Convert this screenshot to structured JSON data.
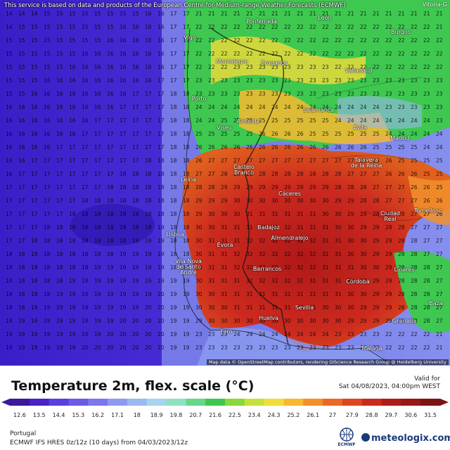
{
  "disclaimer": "This service is based on data and products of the European Centre for Medium-range Weather Forecasts (ECMWF)",
  "corner_city": "Vitoria-G",
  "attribution": "Map data © OpenStreetMap contributors, rendering GIScience Research Group @ Heidelberg University",
  "title": "Temperature 2m, flex. scale (°C)",
  "valid_label": "Valid for",
  "valid_time": "Sat 04/08/2023, 04:00pm WEST",
  "region": "Portugal",
  "model_line": "ECMWF IFS HRES 0z/12z (10 days) from 04/03/2023/12z",
  "ecmwf_logo_text": "ECMWF",
  "brand": "meteologix.com",
  "colors": {
    "cold": "#3a1fc8",
    "cool": "#8a8ae8",
    "mild": "#44bb44",
    "warm": "#ffaa00",
    "hot": "#cc2200",
    "veryhot": "#b01818"
  },
  "legend": {
    "ticks": [
      "12.6",
      "13.5",
      "14.4",
      "15.3",
      "16.2",
      "17.1",
      "18",
      "18.9",
      "19.8",
      "20.7",
      "21.6",
      "22.5",
      "23.4",
      "24.3",
      "25.2",
      "26.1",
      "27",
      "27.9",
      "28.8",
      "29.7",
      "30.6",
      "31.5"
    ],
    "colors": [
      "#3a1a9a",
      "#4a22c8",
      "#5a3ee0",
      "#6c5ae8",
      "#7c78ec",
      "#8e9af0",
      "#9ab8f2",
      "#a6d4ee",
      "#8ee0c0",
      "#66d88a",
      "#3ec850",
      "#8ad83a",
      "#c6e23a",
      "#f2dc3a",
      "#f8b830",
      "#f2902a",
      "#ea6a24",
      "#de4620",
      "#cc2a1e",
      "#b01c1c",
      "#961818",
      "#7c1414"
    ]
  },
  "cities": [
    {
      "name": "León"
    },
    {
      "name": "Ponferrada"
    },
    {
      "name": "Burgos"
    },
    {
      "name": "Vigo"
    },
    {
      "name": "Montalegre"
    },
    {
      "name": "Bragança"
    },
    {
      "name": "Valladolid"
    },
    {
      "name": "Porto"
    },
    {
      "name": "Salamanca"
    },
    {
      "name": "Viseu"
    },
    {
      "name": "Almeida"
    },
    {
      "name": "Ávila"
    },
    {
      "name": "Madrid"
    },
    {
      "name": "Castelo\nBranco"
    },
    {
      "name": "Talavera\nde la Reina"
    },
    {
      "name": "Leiria"
    },
    {
      "name": "Cáceres"
    },
    {
      "name": "Tomelloso"
    },
    {
      "name": "Ciudad\nReal"
    },
    {
      "name": "Badajoz"
    },
    {
      "name": "Lisboa"
    },
    {
      "name": "Évora"
    },
    {
      "name": "Almendralejo"
    },
    {
      "name": "Vila Nova\nde Santo\nAndré"
    },
    {
      "name": "Barrancos"
    },
    {
      "name": "Linares"
    },
    {
      "name": "Córdoba"
    },
    {
      "name": "Sevilla"
    },
    {
      "name": "Huelva"
    },
    {
      "name": "Granada"
    },
    {
      "name": "Faro"
    },
    {
      "name": "Málaga"
    },
    {
      "name": "Baza"
    }
  ]
}
